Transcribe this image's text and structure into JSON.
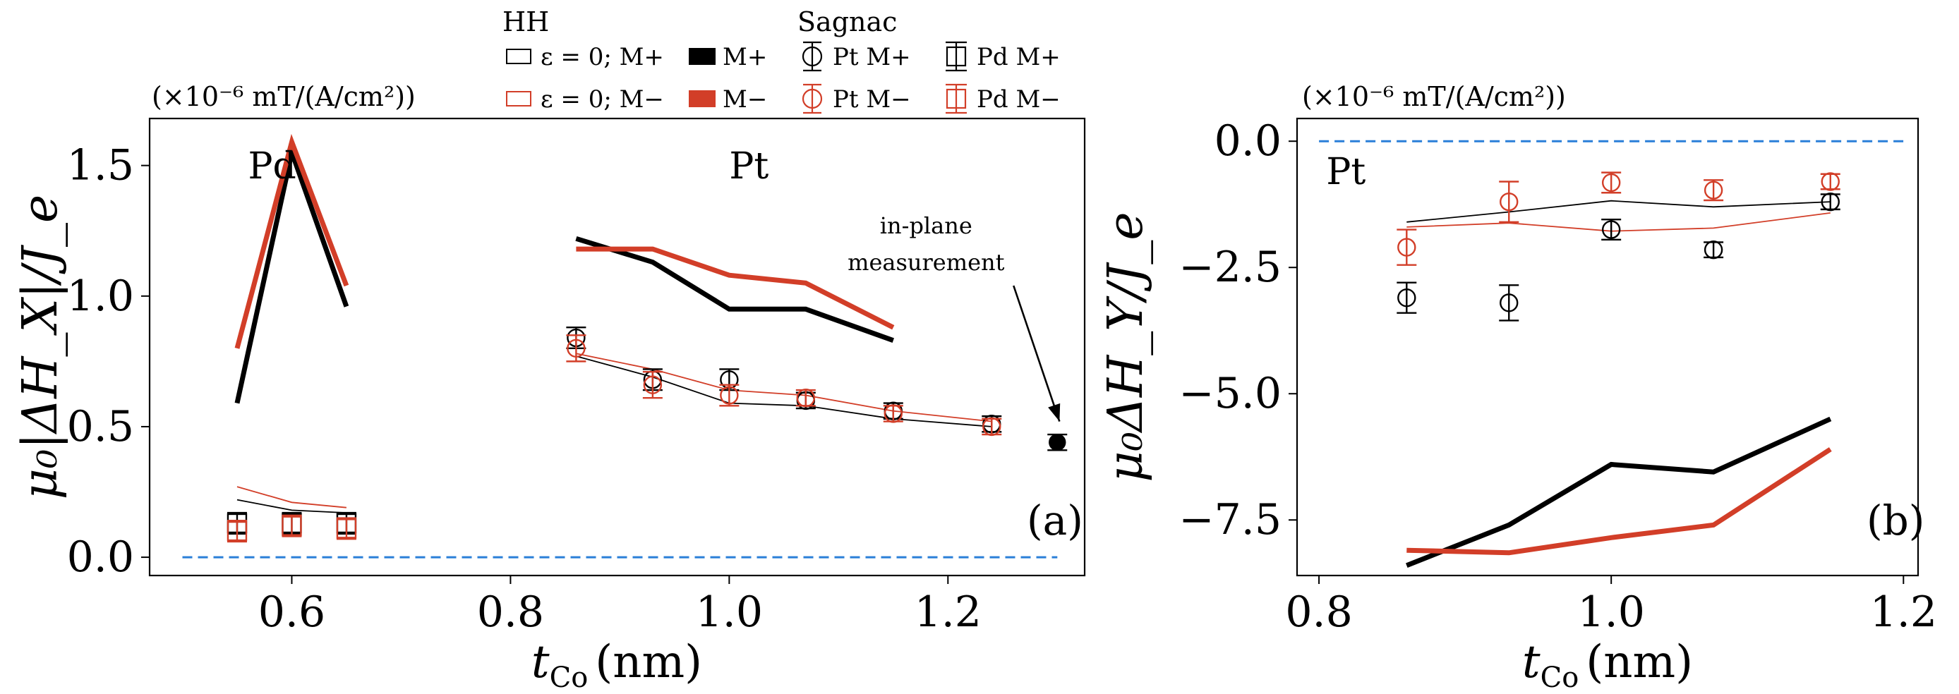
{
  "colors": {
    "black": "#000000",
    "red": "#d23e28",
    "blue_dashed": "#2a7fd8"
  },
  "legend": {
    "hh_title": "HH",
    "sagnac_title": "Sagnac",
    "items": [
      {
        "label": "ε = 0; M+",
        "symbol": "thin-box",
        "color": "black"
      },
      {
        "label": "ε = 0; M−",
        "symbol": "thin-box",
        "color": "red"
      },
      {
        "label": "M+",
        "symbol": "filled-box",
        "color": "black"
      },
      {
        "label": "M−",
        "symbol": "filled-box",
        "color": "red"
      },
      {
        "label": "Pt M+",
        "symbol": "circle",
        "color": "black"
      },
      {
        "label": "Pt M−",
        "symbol": "circle",
        "color": "red"
      },
      {
        "label": "Pd M+",
        "symbol": "square",
        "color": "black"
      },
      {
        "label": "Pd M−",
        "symbol": "square",
        "color": "red"
      }
    ]
  },
  "chart_data": [
    {
      "id": "a",
      "type": "line",
      "panel_label": "(a)",
      "units_note": "(×10⁻⁶ mT/(A/cm²))",
      "xlabel": "t_Co (nm)",
      "xlabel_main": "t",
      "xlabel_sub": "Co",
      "xlabel_unit": "(nm)",
      "ylabel": "μ₀|ΔH_X|/J_e",
      "xlim": [
        0.47,
        1.325
      ],
      "ylim": [
        -0.07,
        1.68
      ],
      "xticks": [
        0.6,
        0.8,
        1.0,
        1.2
      ],
      "xtick_labels": [
        "0.6",
        "0.8",
        "1.0",
        "1.2"
      ],
      "yticks": [
        0.0,
        0.5,
        1.0,
        1.5
      ],
      "ytick_labels": [
        "0.0",
        "0.5",
        "1.0",
        "1.5"
      ],
      "annotations": [
        {
          "text": "Pd",
          "x": 0.56,
          "y": 1.45
        },
        {
          "text": "Pt",
          "x": 1.0,
          "y": 1.45
        },
        {
          "text": "in-plane",
          "x": 1.18,
          "y": 1.24
        },
        {
          "text": "measurement",
          "x": 1.18,
          "y": 1.1
        }
      ],
      "arrow": {
        "from": [
          1.26,
          1.04
        ],
        "to": [
          1.302,
          0.52
        ]
      },
      "series": [
        {
          "name": "HH M+ (Pd)",
          "style": "thick",
          "color": "black",
          "x": [
            0.55,
            0.6,
            0.65
          ],
          "y": [
            0.59,
            1.55,
            0.96
          ]
        },
        {
          "name": "HH M− (Pd)",
          "style": "thick",
          "color": "red",
          "x": [
            0.55,
            0.6,
            0.65
          ],
          "y": [
            0.8,
            1.59,
            1.04
          ]
        },
        {
          "name": "HH M+ (Pt)",
          "style": "thick",
          "color": "black",
          "x": [
            0.86,
            0.93,
            1.0,
            1.07,
            1.15
          ],
          "y": [
            1.22,
            1.13,
            0.95,
            0.95,
            0.83
          ]
        },
        {
          "name": "HH M− (Pt)",
          "style": "thick",
          "color": "red",
          "x": [
            0.86,
            0.93,
            1.0,
            1.07,
            1.15
          ],
          "y": [
            1.18,
            1.18,
            1.08,
            1.05,
            0.88
          ]
        },
        {
          "name": "HH ε=0 M+ (Pd)",
          "style": "thin",
          "color": "black",
          "x": [
            0.55,
            0.6,
            0.65
          ],
          "y": [
            0.22,
            0.18,
            0.17
          ]
        },
        {
          "name": "HH ε=0 M− (Pd)",
          "style": "thin",
          "color": "red",
          "x": [
            0.55,
            0.6,
            0.65
          ],
          "y": [
            0.27,
            0.21,
            0.19
          ]
        },
        {
          "name": "HH ε=0 M+ (Pt)",
          "style": "thin",
          "color": "black",
          "x": [
            0.86,
            0.93,
            1.0,
            1.07,
            1.15,
            1.24
          ],
          "y": [
            0.77,
            0.69,
            0.59,
            0.58,
            0.53,
            0.5
          ]
        },
        {
          "name": "HH ε=0 M− (Pt)",
          "style": "thin",
          "color": "red",
          "x": [
            0.86,
            0.93,
            1.0,
            1.07,
            1.15,
            1.24
          ],
          "y": [
            0.78,
            0.72,
            0.64,
            0.62,
            0.56,
            0.52
          ]
        },
        {
          "name": "Sagnac Pt M+",
          "style": "circle",
          "color": "black",
          "x": [
            0.86,
            0.93,
            1.0,
            1.07,
            1.15,
            1.24
          ],
          "y": [
            0.84,
            0.68,
            0.68,
            0.6,
            0.56,
            0.51
          ],
          "err": [
            0.04,
            0.04,
            0.04,
            0.03,
            0.03,
            0.03
          ]
        },
        {
          "name": "Sagnac Pt M−",
          "style": "circle",
          "color": "red",
          "x": [
            0.86,
            0.93,
            1.0,
            1.07,
            1.15,
            1.24
          ],
          "y": [
            0.8,
            0.66,
            0.62,
            0.61,
            0.55,
            0.5
          ],
          "err": [
            0.05,
            0.05,
            0.04,
            0.03,
            0.03,
            0.03
          ]
        },
        {
          "name": "Sagnac Pt M+ in-plane",
          "style": "circle-filled",
          "color": "black",
          "x": [
            1.3
          ],
          "y": [
            0.44
          ],
          "err": [
            0.03
          ]
        },
        {
          "name": "Sagnac Pd M+",
          "style": "square",
          "color": "black",
          "x": [
            0.55,
            0.6,
            0.65
          ],
          "y": [
            0.13,
            0.13,
            0.13
          ],
          "err": [
            0.04,
            0.04,
            0.04
          ]
        },
        {
          "name": "Sagnac Pd M−",
          "style": "square",
          "color": "red",
          "x": [
            0.55,
            0.6,
            0.65
          ],
          "y": [
            0.1,
            0.12,
            0.11
          ],
          "err": [
            0.04,
            0.04,
            0.04
          ]
        },
        {
          "name": "zero",
          "style": "dashed",
          "color": "blue_dashed",
          "x": [
            0.5,
            1.3
          ],
          "y": [
            0.0,
            0.0
          ]
        }
      ]
    },
    {
      "id": "b",
      "type": "line",
      "panel_label": "(b)",
      "units_note": "(×10⁻⁶ mT/(A/cm²))",
      "xlabel": "t_Co (nm)",
      "xlabel_main": "t",
      "xlabel_sub": "Co",
      "xlabel_unit": "(nm)",
      "ylabel": "μ₀ΔH_Y/J_e",
      "xlim": [
        0.785,
        1.21
      ],
      "ylim": [
        -8.6,
        0.45
      ],
      "xticks": [
        0.8,
        1.0,
        1.2
      ],
      "xtick_labels": [
        "0.8",
        "1.0",
        "1.2"
      ],
      "yticks": [
        0.0,
        -2.5,
        -5.0,
        -7.5
      ],
      "ytick_labels": [
        "0.0",
        "−2.5",
        "−5.0",
        "−7.5"
      ],
      "annotations": [
        {
          "text": "Pt",
          "x": 0.805,
          "y": -0.85
        }
      ],
      "series": [
        {
          "name": "HH M+",
          "style": "thick",
          "color": "black",
          "x": [
            0.86,
            0.93,
            1.0,
            1.07,
            1.15
          ],
          "y": [
            -8.4,
            -7.6,
            -6.4,
            -6.55,
            -5.5
          ]
        },
        {
          "name": "HH M−",
          "style": "thick",
          "color": "red",
          "x": [
            0.86,
            0.93,
            1.0,
            1.07,
            1.15
          ],
          "y": [
            -8.1,
            -8.15,
            -7.85,
            -7.6,
            -6.1
          ]
        },
        {
          "name": "HH ε=0 M+",
          "style": "thin",
          "color": "black",
          "x": [
            0.86,
            0.93,
            1.0,
            1.07,
            1.15
          ],
          "y": [
            -1.6,
            -1.4,
            -1.18,
            -1.3,
            -1.2
          ]
        },
        {
          "name": "HH ε=0 M−",
          "style": "thin",
          "color": "red",
          "x": [
            0.86,
            0.93,
            1.0,
            1.07,
            1.15
          ],
          "y": [
            -1.7,
            -1.62,
            -1.78,
            -1.72,
            -1.42
          ]
        },
        {
          "name": "Sagnac Pt M+",
          "style": "circle",
          "color": "black",
          "x": [
            0.86,
            0.93,
            1.0,
            1.07,
            1.15
          ],
          "y": [
            -3.1,
            -3.2,
            -1.75,
            -2.15,
            -1.2
          ],
          "err": [
            0.3,
            0.35,
            0.2,
            0.15,
            0.15
          ]
        },
        {
          "name": "Sagnac Pt M−",
          "style": "circle",
          "color": "red",
          "x": [
            0.86,
            0.93,
            1.0,
            1.07,
            1.15
          ],
          "y": [
            -2.1,
            -1.2,
            -0.82,
            -0.97,
            -0.8
          ],
          "err": [
            0.35,
            0.4,
            0.2,
            0.2,
            0.15
          ]
        },
        {
          "name": "zero",
          "style": "dashed",
          "color": "blue_dashed",
          "x": [
            0.8,
            1.2
          ],
          "y": [
            0.0,
            0.0
          ]
        }
      ]
    }
  ]
}
